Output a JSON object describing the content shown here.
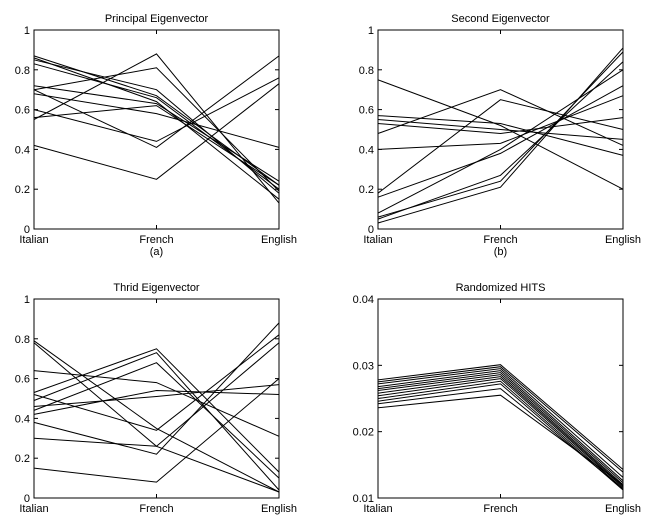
{
  "chart_data": [
    {
      "type": "line",
      "title": "Principal Eigenvector",
      "xlabel": "(a)",
      "categories": [
        "Italian",
        "French",
        "English"
      ],
      "ylim": [
        0,
        1
      ],
      "yticks": [
        0,
        0.2,
        0.4,
        0.6,
        0.8,
        1
      ],
      "ytick_labels": [
        "0",
        "0.2",
        "0.4",
        "0.6",
        "0.8",
        "1"
      ],
      "grid": false,
      "series": [
        {
          "values": [
            0.87,
            0.67,
            0.22
          ]
        },
        {
          "values": [
            0.85,
            0.7,
            0.18
          ]
        },
        {
          "values": [
            0.83,
            0.66,
            0.2
          ]
        },
        {
          "values": [
            0.86,
            0.64,
            0.15
          ]
        },
        {
          "values": [
            0.7,
            0.81,
            0.19
          ]
        },
        {
          "values": [
            0.72,
            0.63,
            0.24
          ]
        },
        {
          "values": [
            0.55,
            0.88,
            0.13
          ]
        },
        {
          "values": [
            0.68,
            0.58,
            0.41
          ]
        },
        {
          "values": [
            0.56,
            0.62,
            0.22
          ]
        },
        {
          "values": [
            0.6,
            0.44,
            0.76
          ]
        },
        {
          "values": [
            0.7,
            0.41,
            0.87
          ]
        },
        {
          "values": [
            0.42,
            0.25,
            0.73
          ]
        }
      ]
    },
    {
      "type": "line",
      "title": "Second Eigenvector",
      "xlabel": "(b)",
      "categories": [
        "Italian",
        "French",
        "English"
      ],
      "ylim": [
        0,
        1
      ],
      "yticks": [
        0,
        0.2,
        0.4,
        0.6,
        0.8,
        1
      ],
      "ytick_labels": [
        "0",
        "0.2",
        "0.4",
        "0.6",
        "0.8",
        "1"
      ],
      "grid": false,
      "series": [
        {
          "values": [
            0.75,
            0.52,
            0.2
          ]
        },
        {
          "values": [
            0.57,
            0.53,
            0.37
          ]
        },
        {
          "values": [
            0.55,
            0.5,
            0.45
          ]
        },
        {
          "values": [
            0.53,
            0.48,
            0.56
          ]
        },
        {
          "values": [
            0.4,
            0.43,
            0.67
          ]
        },
        {
          "values": [
            0.48,
            0.7,
            0.42
          ]
        },
        {
          "values": [
            0.18,
            0.65,
            0.5
          ]
        },
        {
          "values": [
            0.16,
            0.38,
            0.72
          ]
        },
        {
          "values": [
            0.08,
            0.4,
            0.8
          ]
        },
        {
          "values": [
            0.05,
            0.27,
            0.84
          ]
        },
        {
          "values": [
            0.06,
            0.24,
            0.89
          ]
        },
        {
          "values": [
            0.03,
            0.21,
            0.91
          ]
        }
      ]
    },
    {
      "type": "line",
      "title": "Thrid Eigenvector",
      "xlabel": "",
      "categories": [
        "Italian",
        "French",
        "English"
      ],
      "ylim": [
        0,
        1
      ],
      "yticks": [
        0,
        0.2,
        0.4,
        0.6,
        0.8,
        1
      ],
      "ytick_labels": [
        "0",
        "0.2",
        "0.4",
        "0.6",
        "0.8",
        "1"
      ],
      "grid": false,
      "series": [
        {
          "values": [
            0.79,
            0.35,
            0.03
          ]
        },
        {
          "values": [
            0.78,
            0.26,
            0.03
          ]
        },
        {
          "values": [
            0.64,
            0.58,
            0.31
          ]
        },
        {
          "values": [
            0.53,
            0.75,
            0.13
          ]
        },
        {
          "values": [
            0.49,
            0.73,
            0.04
          ]
        },
        {
          "values": [
            0.44,
            0.68,
            0.1
          ]
        },
        {
          "values": [
            0.42,
            0.54,
            0.52
          ]
        },
        {
          "values": [
            0.46,
            0.51,
            0.57
          ]
        },
        {
          "values": [
            0.38,
            0.22,
            0.88
          ]
        },
        {
          "values": [
            0.3,
            0.26,
            0.78
          ]
        },
        {
          "values": [
            0.15,
            0.08,
            0.6
          ]
        },
        {
          "values": [
            0.52,
            0.34,
            0.82
          ]
        }
      ]
    },
    {
      "type": "line",
      "title": "Randomized HITS",
      "xlabel": "",
      "categories": [
        "Italian",
        "French",
        "English"
      ],
      "ylim": [
        0.01,
        0.04
      ],
      "yticks": [
        0.01,
        0.02,
        0.03,
        0.04
      ],
      "ytick_labels": [
        "0.01",
        "0.02",
        "0.03",
        "0.04"
      ],
      "grid": false,
      "series": [
        {
          "values": [
            0.0278,
            0.0301,
            0.0143
          ]
        },
        {
          "values": [
            0.0275,
            0.0298,
            0.0139
          ]
        },
        {
          "values": [
            0.0272,
            0.0295,
            0.0131
          ]
        },
        {
          "values": [
            0.0268,
            0.0292,
            0.0126
          ]
        },
        {
          "values": [
            0.0265,
            0.0289,
            0.0123
          ]
        },
        {
          "values": [
            0.0262,
            0.0286,
            0.012
          ]
        },
        {
          "values": [
            0.0258,
            0.0283,
            0.0118
          ]
        },
        {
          "values": [
            0.0254,
            0.028,
            0.0116
          ]
        },
        {
          "values": [
            0.025,
            0.0276,
            0.0114
          ]
        },
        {
          "values": [
            0.0246,
            0.0272,
            0.0112
          ]
        },
        {
          "values": [
            0.0242,
            0.0265,
            0.0114
          ]
        },
        {
          "values": [
            0.0236,
            0.0255,
            0.012
          ]
        }
      ]
    }
  ]
}
